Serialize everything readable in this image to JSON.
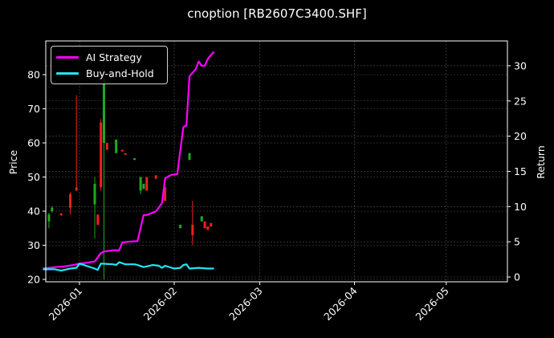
{
  "title": "cnoption [RB2607C3400.SHF]",
  "colors": {
    "background": "#000000",
    "strategy": "#ff00ff",
    "buyhold": "#22e5f5",
    "up": "#1faa1f",
    "down": "#ee2020",
    "grid": "#555555",
    "axis": "#ffffff"
  },
  "legend": {
    "items": [
      {
        "label": "AI Strategy",
        "color": "#ff00ff"
      },
      {
        "label": "Buy-and-Hold",
        "color": "#22e5f5"
      }
    ]
  },
  "axes": {
    "left_label": "Price",
    "right_label": "Return",
    "left_ticks": [
      "20",
      "30",
      "40",
      "50",
      "60",
      "70",
      "80"
    ],
    "right_ticks": [
      "0",
      "5",
      "10",
      "15",
      "20",
      "25",
      "30"
    ],
    "x_ticks": [
      "2026-01",
      "2026-02",
      "2026-03",
      "2026-04",
      "2026-05"
    ]
  },
  "chart_data": {
    "type": "line",
    "title": "cnoption [RB2607C3400.SHF]",
    "xlabel": "",
    "ylabel": "Price",
    "ylabel_right": "Return",
    "ylim": [
      19,
      90
    ],
    "ylim_right": [
      -0.5,
      33
    ],
    "xlim": [
      "2025-12-20",
      "2026-05-20"
    ],
    "grid": true,
    "legend_position": "upper left",
    "x_ticks": [
      "2026-01",
      "2026-02",
      "2026-03",
      "2026-04",
      "2026-05"
    ],
    "candles": [
      {
        "date": "2025-12-22",
        "open": 37,
        "close": 39,
        "high": 39.5,
        "low": 35,
        "dir": "up"
      },
      {
        "date": "2025-12-23",
        "open": 40,
        "close": 41,
        "high": 41.5,
        "low": 39.5,
        "dir": "up"
      },
      {
        "date": "2025-12-26",
        "open": 39.3,
        "close": 38.8,
        "high": 39.5,
        "low": 38.6,
        "dir": "down"
      },
      {
        "date": "2025-12-29",
        "open": 45,
        "close": 41,
        "high": 45.5,
        "low": 39,
        "dir": "down"
      },
      {
        "date": "2025-12-31",
        "open": 47,
        "close": 46,
        "high": 74,
        "low": 46,
        "dir": "down"
      },
      {
        "date": "2026-01-06",
        "open": 42,
        "close": 48,
        "high": 50,
        "low": 32,
        "dir": "up"
      },
      {
        "date": "2026-01-07",
        "open": 39,
        "close": 36,
        "high": 39,
        "low": 36,
        "dir": "down"
      },
      {
        "date": "2026-01-08",
        "open": 66,
        "close": 47,
        "high": 67,
        "low": 46,
        "dir": "down"
      },
      {
        "date": "2026-01-09",
        "open": 60,
        "close": 79,
        "high": 87,
        "low": 20,
        "dir": "up"
      },
      {
        "date": "2026-01-10",
        "open": 60,
        "close": 58,
        "high": 60,
        "low": 58,
        "dir": "down"
      },
      {
        "date": "2026-01-13",
        "open": 57,
        "close": 61,
        "high": 61,
        "low": 57,
        "dir": "up"
      },
      {
        "date": "2026-01-15",
        "open": 58,
        "close": 57.5,
        "high": 58,
        "low": 57.5,
        "dir": "down"
      },
      {
        "date": "2026-01-16",
        "open": 57,
        "close": 56.5,
        "high": 57,
        "low": 56.5,
        "dir": "down"
      },
      {
        "date": "2026-01-19",
        "open": 55,
        "close": 55.5,
        "high": 55.5,
        "low": 55,
        "dir": "up"
      },
      {
        "date": "2026-01-21",
        "open": 46,
        "close": 50,
        "high": 50,
        "low": 45,
        "dir": "up"
      },
      {
        "date": "2026-01-22",
        "open": 46.5,
        "close": 48,
        "high": 48,
        "low": 46.5,
        "dir": "up"
      },
      {
        "date": "2026-01-23",
        "open": 50,
        "close": 46,
        "high": 50,
        "low": 46,
        "dir": "down"
      },
      {
        "date": "2026-01-26",
        "open": 50.5,
        "close": 49.5,
        "high": 50.5,
        "low": 49.5,
        "dir": "down"
      },
      {
        "date": "2026-01-29",
        "open": 47,
        "close": 43,
        "high": 47,
        "low": 43,
        "dir": "down"
      },
      {
        "date": "2026-02-03",
        "open": 35,
        "close": 36,
        "high": 36,
        "low": 35,
        "dir": "up"
      },
      {
        "date": "2026-02-06",
        "open": 55,
        "close": 57,
        "high": 57,
        "low": 55,
        "dir": "up"
      },
      {
        "date": "2026-02-07",
        "open": 36,
        "close": 33,
        "high": 43,
        "low": 30,
        "dir": "down"
      },
      {
        "date": "2026-02-10",
        "open": 37,
        "close": 38.5,
        "high": 38.5,
        "low": 37,
        "dir": "up"
      },
      {
        "date": "2026-02-11",
        "open": 37,
        "close": 35,
        "high": 37,
        "low": 35,
        "dir": "down"
      },
      {
        "date": "2026-02-12",
        "open": 35.5,
        "close": 34.5,
        "high": 35.5,
        "low": 34.5,
        "dir": "down"
      },
      {
        "date": "2026-02-13",
        "open": 36.5,
        "close": 35.5,
        "high": 36.5,
        "low": 35.5,
        "dir": "down"
      }
    ],
    "series": [
      {
        "name": "AI Strategy",
        "axis": "right",
        "x": [
          "2025-12-20",
          "2025-12-24",
          "2025-12-27",
          "2025-12-30",
          "2026-01-01",
          "2026-01-03",
          "2026-01-06",
          "2026-01-08",
          "2026-01-09",
          "2026-01-12",
          "2026-01-14",
          "2026-01-15",
          "2026-01-17",
          "2026-01-20",
          "2026-01-22",
          "2026-01-23",
          "2026-01-26",
          "2026-01-28",
          "2026-01-29",
          "2026-01-31",
          "2026-02-02",
          "2026-02-03",
          "2026-02-04",
          "2026-02-05",
          "2026-02-06",
          "2026-02-08",
          "2026-02-09",
          "2026-02-10",
          "2026-02-11",
          "2026-02-12",
          "2026-02-14"
        ],
        "values": [
          1.2,
          1.4,
          1.5,
          1.7,
          1.9,
          2.0,
          2.2,
          3.4,
          3.6,
          3.8,
          3.8,
          4.9,
          5.0,
          5.1,
          8.8,
          8.8,
          9.3,
          10.5,
          14.0,
          14.5,
          14.6,
          18.0,
          21.3,
          21.5,
          28.5,
          29.5,
          30.6,
          30.0,
          30.0,
          31.0,
          32.0
        ]
      },
      {
        "name": "Buy-and-Hold",
        "axis": "right",
        "x": [
          "2025-12-20",
          "2025-12-24",
          "2025-12-26",
          "2025-12-29",
          "2025-12-31",
          "2026-01-01",
          "2026-01-06",
          "2026-01-07",
          "2026-01-08",
          "2026-01-12",
          "2026-01-13",
          "2026-01-14",
          "2026-01-16",
          "2026-01-19",
          "2026-01-20",
          "2026-01-22",
          "2026-01-25",
          "2026-01-27",
          "2026-01-28",
          "2026-01-29",
          "2026-02-01",
          "2026-02-03",
          "2026-02-04",
          "2026-02-05",
          "2026-02-06",
          "2026-02-09",
          "2026-02-12",
          "2026-02-14"
        ],
        "values": [
          1.1,
          1.1,
          0.9,
          1.2,
          1.3,
          1.9,
          1.2,
          1.0,
          1.9,
          1.8,
          1.7,
          2.1,
          1.8,
          1.8,
          1.7,
          1.4,
          1.7,
          1.6,
          1.3,
          1.6,
          1.2,
          1.3,
          1.7,
          1.8,
          1.2,
          1.3,
          1.2,
          1.2
        ]
      }
    ]
  }
}
